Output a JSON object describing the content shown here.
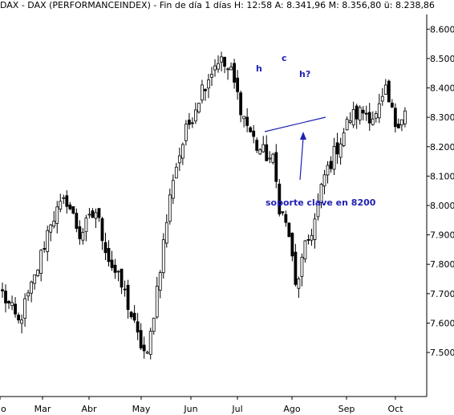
{
  "chart_data": {
    "type": "candlestick",
    "header": "DAX - DAX (PERFORMANCEINDEX) - Fin de día 1 días H: 12:58  A: 8.341,96  M: 8.356,80  ü: 8.238,86",
    "ylim": [
      7350,
      8650
    ],
    "yticks": [
      {
        "value": 7500,
        "label": "7.500"
      },
      {
        "value": 7600,
        "label": "7.600"
      },
      {
        "value": 7700,
        "label": "7.700"
      },
      {
        "value": 7800,
        "label": "7.800"
      },
      {
        "value": 7900,
        "label": "7.900"
      },
      {
        "value": 8000,
        "label": "8.000"
      },
      {
        "value": 8100,
        "label": "8.100"
      },
      {
        "value": 8200,
        "label": "8.200"
      },
      {
        "value": 8300,
        "label": "8.300"
      },
      {
        "value": 8400,
        "label": "8.400"
      },
      {
        "value": 8500,
        "label": "8.500"
      },
      {
        "value": 8600,
        "label": "8.600"
      }
    ],
    "xticks": [
      "Mar",
      "Abr",
      "May",
      "Jun",
      "Jul",
      "Ago",
      "Sep",
      "Oct"
    ],
    "xtick_partial": "o",
    "anchors": [
      {
        "x": 0,
        "y": 7700
      },
      {
        "x": 5,
        "y": 7600
      },
      {
        "x": 10,
        "y": 7750
      },
      {
        "x": 15,
        "y": 7950
      },
      {
        "x": 20,
        "y": 8020
      },
      {
        "x": 24,
        "y": 7900
      },
      {
        "x": 29,
        "y": 7980
      },
      {
        "x": 33,
        "y": 7820
      },
      {
        "x": 38,
        "y": 7700
      },
      {
        "x": 42,
        "y": 7550
      },
      {
        "x": 45,
        "y": 7480
      },
      {
        "x": 48,
        "y": 7720
      },
      {
        "x": 53,
        "y": 8100
      },
      {
        "x": 57,
        "y": 8250
      },
      {
        "x": 62,
        "y": 8400
      },
      {
        "x": 67,
        "y": 8500
      },
      {
        "x": 71,
        "y": 8450
      },
      {
        "x": 75,
        "y": 8300
      },
      {
        "x": 79,
        "y": 8200
      },
      {
        "x": 84,
        "y": 8150
      },
      {
        "x": 86,
        "y": 8000
      },
      {
        "x": 89,
        "y": 7900
      },
      {
        "x": 91,
        "y": 7720
      },
      {
        "x": 94,
        "y": 7850
      },
      {
        "x": 97,
        "y": 7950
      },
      {
        "x": 100,
        "y": 8100
      },
      {
        "x": 104,
        "y": 8200
      },
      {
        "x": 108,
        "y": 8300
      },
      {
        "x": 112,
        "y": 8320
      },
      {
        "x": 116,
        "y": 8300
      },
      {
        "x": 119,
        "y": 8380
      },
      {
        "x": 122,
        "y": 8280
      },
      {
        "x": 125,
        "y": 8320
      }
    ],
    "annotations": {
      "h_left": "h",
      "c": "c",
      "h_right": "h?",
      "support_text": "soporte clave en 8200"
    }
  }
}
